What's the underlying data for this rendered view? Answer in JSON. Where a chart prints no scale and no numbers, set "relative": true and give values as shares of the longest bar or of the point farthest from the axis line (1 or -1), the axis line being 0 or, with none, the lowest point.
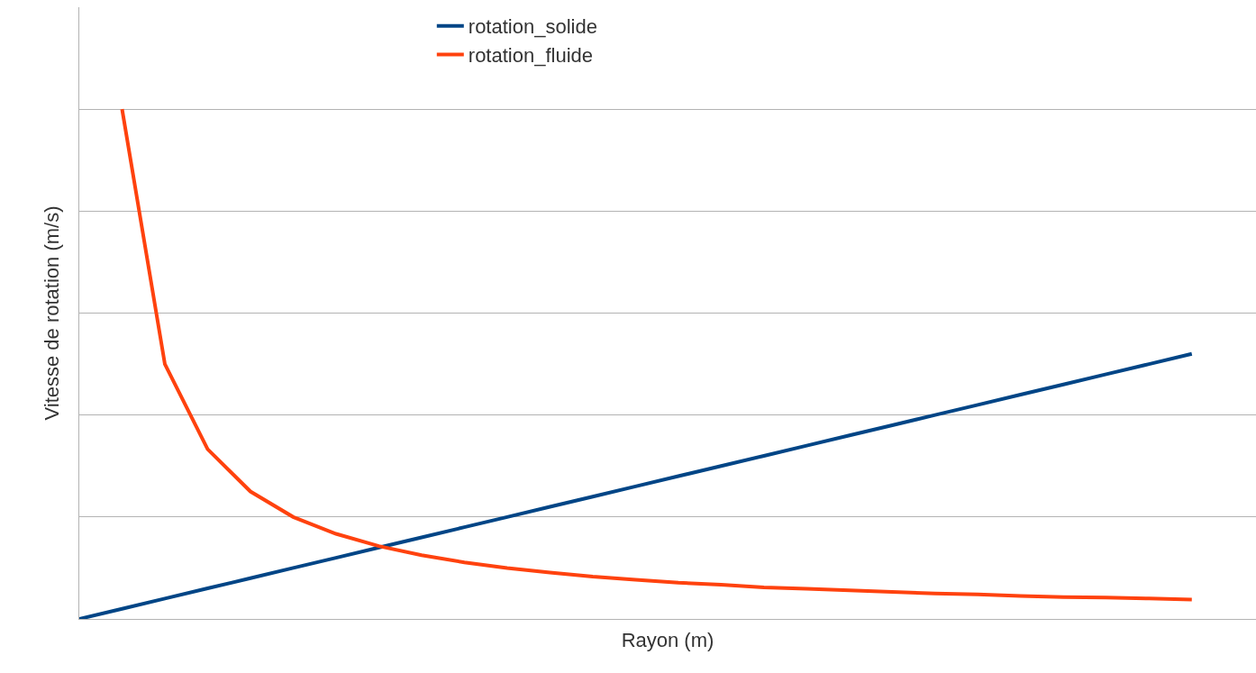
{
  "chart_data": {
    "type": "line",
    "relative": true,
    "xlabel": "Rayon (m)",
    "ylabel": "Vitesse de rotation (m/s)",
    "categories": [
      null,
      null,
      null,
      null,
      null,
      null,
      null,
      null,
      null,
      null,
      null,
      null,
      null,
      null,
      null,
      null,
      null,
      null,
      null,
      null,
      null,
      null,
      null,
      null,
      null,
      null,
      null
    ],
    "series": [
      {
        "name": "rotation_solide",
        "color": "#004586",
        "values": [
          0,
          0.02,
          0.04,
          0.06,
          0.08,
          0.1,
          0.12,
          0.14,
          0.16,
          0.18,
          0.2,
          0.22,
          0.24,
          0.26,
          0.28,
          0.3,
          0.32,
          0.34,
          0.36,
          0.38,
          0.4,
          0.42,
          0.44,
          0.46,
          0.48,
          0.5,
          0.52
        ]
      },
      {
        "name": "rotation_fluide",
        "color": "#ff420e",
        "values": [
          null,
          1,
          0.5,
          0.333,
          0.25,
          0.2,
          0.167,
          0.143,
          0.125,
          0.111,
          0.1,
          0.091,
          0.083,
          0.077,
          0.071,
          0.067,
          0.062,
          0.059,
          0.056,
          0.053,
          0.05,
          0.048,
          0.045,
          0.043,
          0.042,
          0.04,
          0.038
        ]
      }
    ],
    "grid": "y",
    "legend": "top",
    "marker": "none",
    "line_style": "solid",
    "tick_labels": false
  }
}
